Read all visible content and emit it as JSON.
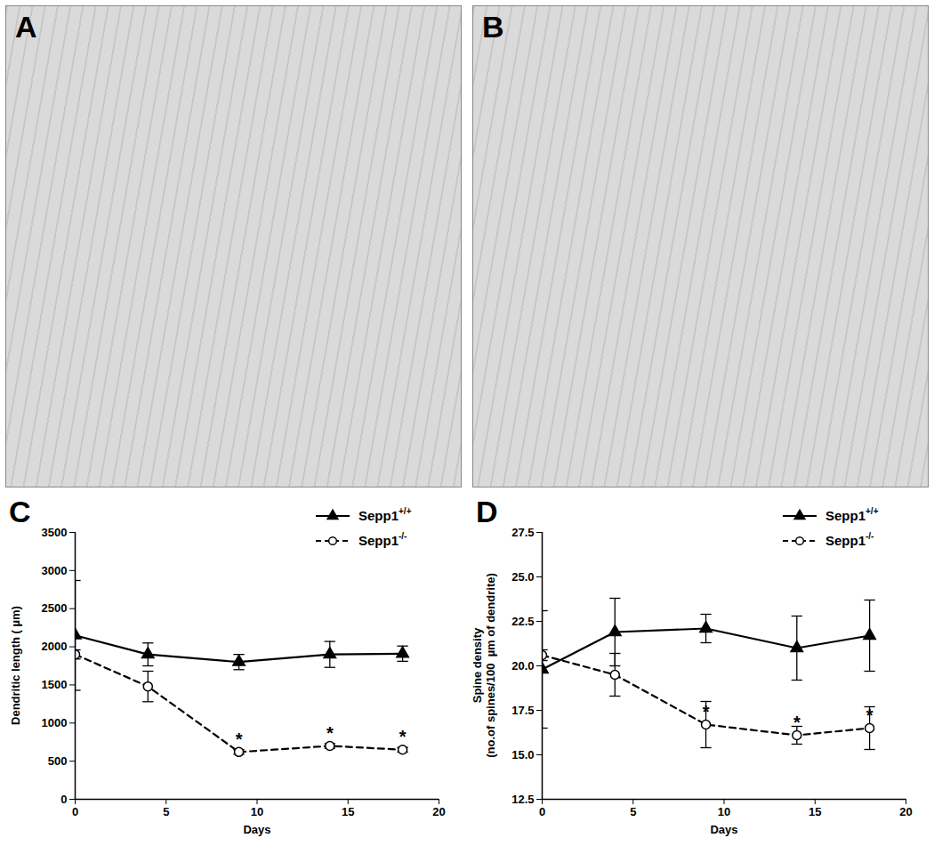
{
  "chart_data": [
    {
      "type": "image",
      "title": "A"
    },
    {
      "type": "image",
      "title": "B"
    },
    {
      "type": "line",
      "title": "C",
      "xlabel": "Days",
      "ylabel": "Dendritic length ( µm)",
      "xlim": [
        0,
        20
      ],
      "xticks": [
        0,
        5,
        10,
        15,
        20
      ],
      "ylim": [
        0,
        3500
      ],
      "yticks": [
        0,
        500,
        1000,
        1500,
        2000,
        2500,
        3000,
        3500
      ],
      "grid": false,
      "legend": "top-right",
      "x": [
        0,
        4,
        9,
        14,
        18
      ],
      "series": [
        {
          "name": "Sepp1+/+",
          "color": "#000000",
          "marker": "triangle",
          "line_style": "solid",
          "values": [
            2150,
            1900,
            1800,
            1900,
            1910
          ],
          "errors": [
            720,
            150,
            100,
            170,
            100
          ]
        },
        {
          "name": "Sepp1-/-",
          "color": "#000000",
          "marker": "open_circle",
          "line_style": "dashed",
          "values": [
            1900,
            1480,
            620,
            700,
            650
          ],
          "errors": [
            60,
            200,
            30,
            30,
            30
          ]
        }
      ],
      "annotations": [
        {
          "x": 9,
          "y": 620,
          "text": "*"
        },
        {
          "x": 14,
          "y": 700,
          "text": "*"
        },
        {
          "x": 18,
          "y": 650,
          "text": "*"
        }
      ]
    },
    {
      "type": "line",
      "title": "D",
      "xlabel": "Days",
      "ylabel": "Spine density\n(no.of spines/100  µm of dendrite)",
      "xlim": [
        0,
        20
      ],
      "xticks": [
        0,
        5,
        10,
        15,
        20
      ],
      "ylim": [
        12.5,
        27.5
      ],
      "yticks": [
        12.5,
        {
          "value": 15,
          "label": "15.0"
        },
        17.5,
        {
          "value": 20,
          "label": "20.0"
        },
        22.5,
        {
          "value": 25,
          "label": "25.0"
        },
        27.5
      ],
      "grid": false,
      "legend": "top-right",
      "x": [
        0,
        4,
        9,
        14,
        18
      ],
      "series": [
        {
          "name": "Sepp1+/+",
          "color": "#000000",
          "marker": "triangle",
          "line_style": "solid",
          "values": [
            19.8,
            21.9,
            22.1,
            21.0,
            21.7
          ],
          "errors": [
            3.3,
            1.9,
            0.8,
            1.8,
            2.0
          ]
        },
        {
          "name": "Sepp1-/-",
          "color": "#000000",
          "marker": "open_circle",
          "line_style": "dashed",
          "values": [
            20.6,
            19.5,
            16.7,
            16.1,
            16.5
          ],
          "errors": [
            0.3,
            1.2,
            1.3,
            0.5,
            1.2
          ]
        }
      ],
      "annotations": [
        {
          "x": 9,
          "y": 16.7,
          "text": "*"
        },
        {
          "x": 14,
          "y": 16.1,
          "text": "*"
        },
        {
          "x": 18,
          "y": 16.5,
          "text": "*"
        }
      ]
    }
  ]
}
